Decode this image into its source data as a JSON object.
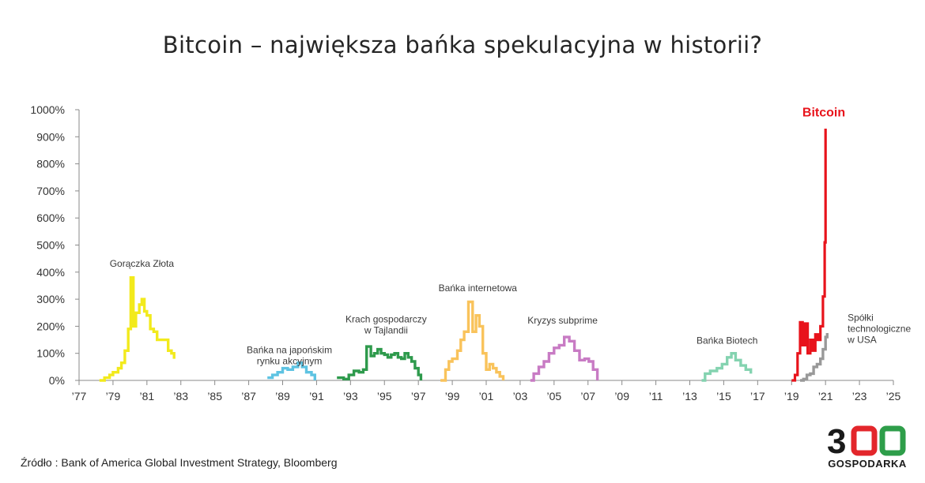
{
  "title": "Bitcoin – największa bańka spekulacyjna w historii?",
  "source": "Źródło : Bank of America Global Investment Strategy, Bloomberg",
  "logo": {
    "text": "300",
    "subtext": "GOSPODARKA",
    "colors": {
      "dark": "#1a1a1a",
      "red": "#e3262b",
      "green": "#2e9e4a"
    }
  },
  "chart_data": {
    "type": "line",
    "title": "Bitcoin – największa bańka spekulacyjna w historii?",
    "xlabel": "",
    "ylabel": "",
    "xlim": [
      1977,
      2025
    ],
    "ylim": [
      0,
      1000
    ],
    "grid": false,
    "x_ticks": [
      {
        "value": 1977,
        "label": "’77"
      },
      {
        "value": 1979,
        "label": "’79"
      },
      {
        "value": 1981,
        "label": "’81"
      },
      {
        "value": 1983,
        "label": "’83"
      },
      {
        "value": 1985,
        "label": "’85"
      },
      {
        "value": 1987,
        "label": "’87"
      },
      {
        "value": 1989,
        "label": "’89"
      },
      {
        "value": 1991,
        "label": "’91"
      },
      {
        "value": 1993,
        "label": "’93"
      },
      {
        "value": 1995,
        "label": "’95"
      },
      {
        "value": 1997,
        "label": "’97"
      },
      {
        "value": 1999,
        "label": "’99"
      },
      {
        "value": 2001,
        "label": "’01"
      },
      {
        "value": 2003,
        "label": "’03"
      },
      {
        "value": 2005,
        "label": "’05"
      },
      {
        "value": 2007,
        "label": "’07"
      },
      {
        "value": 2009,
        "label": "’09"
      },
      {
        "value": 2011,
        "label": "’11"
      },
      {
        "value": 2013,
        "label": "’13"
      },
      {
        "value": 2015,
        "label": "’15"
      },
      {
        "value": 2017,
        "label": "’17"
      },
      {
        "value": 2019,
        "label": "’19"
      },
      {
        "value": 2021,
        "label": "’21"
      },
      {
        "value": 2023,
        "label": "’23"
      },
      {
        "value": 2025,
        "label": "’25"
      }
    ],
    "y_ticks": [
      {
        "value": 0,
        "label": "0%"
      },
      {
        "value": 100,
        "label": "100%"
      },
      {
        "value": 200,
        "label": "200%"
      },
      {
        "value": 300,
        "label": "300%"
      },
      {
        "value": 400,
        "label": "400%"
      },
      {
        "value": 500,
        "label": "500%"
      },
      {
        "value": 600,
        "label": "600%"
      },
      {
        "value": 700,
        "label": "700%"
      },
      {
        "value": 800,
        "label": "800%"
      },
      {
        "value": 900,
        "label": "900%"
      },
      {
        "value": 1000,
        "label": "1000%"
      }
    ],
    "series": [
      {
        "name": "Gorączka Złota",
        "color": "#f2ea1c",
        "label_pos": [
          1980.7,
          420
        ],
        "points": [
          [
            1978.2,
            0
          ],
          [
            1978.5,
            10
          ],
          [
            1978.8,
            20
          ],
          [
            1979.0,
            30
          ],
          [
            1979.3,
            45
          ],
          [
            1979.5,
            65
          ],
          [
            1979.7,
            110
          ],
          [
            1979.9,
            190
          ],
          [
            1980.05,
            380
          ],
          [
            1980.2,
            200
          ],
          [
            1980.35,
            250
          ],
          [
            1980.55,
            280
          ],
          [
            1980.7,
            300
          ],
          [
            1980.85,
            255
          ],
          [
            1981.0,
            240
          ],
          [
            1981.2,
            190
          ],
          [
            1981.4,
            180
          ],
          [
            1981.6,
            150
          ],
          [
            1981.8,
            150
          ],
          [
            1982.05,
            150
          ],
          [
            1982.25,
            110
          ],
          [
            1982.45,
            100
          ],
          [
            1982.6,
            80
          ]
        ]
      },
      {
        "name": "Bańka na japońskim rynku akcyjnym",
        "label_lines": [
          "Bańka na japońskim",
          "rynku akcyjnym"
        ],
        "color": "#5ec3e2",
        "label_pos": [
          1989.4,
          100
        ],
        "points": [
          [
            1988.1,
            10
          ],
          [
            1988.4,
            20
          ],
          [
            1988.7,
            30
          ],
          [
            1989.0,
            45
          ],
          [
            1989.3,
            40
          ],
          [
            1989.6,
            50
          ],
          [
            1989.9,
            65
          ],
          [
            1990.15,
            50
          ],
          [
            1990.4,
            30
          ],
          [
            1990.7,
            20
          ],
          [
            1990.9,
            0
          ]
        ]
      },
      {
        "name": "Krach gospodarczy w Tajlandii",
        "label_lines": [
          "Krach gospodarczy",
          "w Tajlandii"
        ],
        "color": "#2e9a4c",
        "label_pos": [
          1995.1,
          215
        ],
        "points": [
          [
            1992.2,
            10
          ],
          [
            1992.6,
            5
          ],
          [
            1992.9,
            20
          ],
          [
            1993.2,
            35
          ],
          [
            1993.5,
            30
          ],
          [
            1993.75,
            40
          ],
          [
            1993.95,
            125
          ],
          [
            1994.2,
            90
          ],
          [
            1994.4,
            100
          ],
          [
            1994.6,
            115
          ],
          [
            1994.8,
            100
          ],
          [
            1995.0,
            95
          ],
          [
            1995.2,
            85
          ],
          [
            1995.4,
            95
          ],
          [
            1995.6,
            100
          ],
          [
            1995.8,
            85
          ],
          [
            1996.0,
            80
          ],
          [
            1996.2,
            100
          ],
          [
            1996.4,
            85
          ],
          [
            1996.6,
            70
          ],
          [
            1996.8,
            45
          ],
          [
            1997.0,
            20
          ],
          [
            1997.15,
            0
          ]
        ]
      },
      {
        "name": "Bańka internetowa",
        "color": "#f9c35b",
        "label_pos": [
          2000.5,
          330
        ],
        "points": [
          [
            1998.3,
            0
          ],
          [
            1998.6,
            40
          ],
          [
            1998.8,
            70
          ],
          [
            1999.0,
            80
          ],
          [
            1999.3,
            110
          ],
          [
            1999.5,
            150
          ],
          [
            1999.7,
            180
          ],
          [
            1999.95,
            290
          ],
          [
            2000.2,
            180
          ],
          [
            2000.4,
            240
          ],
          [
            2000.6,
            200
          ],
          [
            2000.8,
            100
          ],
          [
            2001.0,
            40
          ],
          [
            2001.2,
            60
          ],
          [
            2001.4,
            45
          ],
          [
            2001.6,
            30
          ],
          [
            2001.8,
            15
          ],
          [
            2002.0,
            0
          ]
        ]
      },
      {
        "name": "Kryzys subprime",
        "color": "#c87bc4",
        "label_pos": [
          2005.5,
          210
        ],
        "points": [
          [
            2003.6,
            0
          ],
          [
            2003.8,
            25
          ],
          [
            2004.1,
            50
          ],
          [
            2004.4,
            70
          ],
          [
            2004.7,
            100
          ],
          [
            2005.0,
            120
          ],
          [
            2005.3,
            130
          ],
          [
            2005.6,
            160
          ],
          [
            2005.9,
            145
          ],
          [
            2006.2,
            110
          ],
          [
            2006.5,
            75
          ],
          [
            2006.8,
            80
          ],
          [
            2007.05,
            70
          ],
          [
            2007.3,
            40
          ],
          [
            2007.55,
            0
          ]
        ]
      },
      {
        "name": "Bańka Biotech",
        "color": "#84d3b0",
        "label_pos": [
          2015.2,
          135
        ],
        "points": [
          [
            2013.7,
            0
          ],
          [
            2013.9,
            25
          ],
          [
            2014.2,
            35
          ],
          [
            2014.6,
            45
          ],
          [
            2014.9,
            60
          ],
          [
            2015.2,
            85
          ],
          [
            2015.45,
            100
          ],
          [
            2015.7,
            75
          ],
          [
            2016.0,
            55
          ],
          [
            2016.3,
            40
          ],
          [
            2016.6,
            25
          ]
        ]
      },
      {
        "name": "Spółki technologiczne w USA",
        "label_lines": [
          "Spółki",
          "technologiczne",
          "w USA"
        ],
        "color": "#999999",
        "label_pos": [
          2022.3,
          220
        ],
        "points": [
          [
            2019.5,
            0
          ],
          [
            2019.7,
            5
          ],
          [
            2019.9,
            20
          ],
          [
            2020.1,
            25
          ],
          [
            2020.3,
            50
          ],
          [
            2020.5,
            60
          ],
          [
            2020.7,
            80
          ],
          [
            2020.85,
            115
          ],
          [
            2021.0,
            160
          ],
          [
            2021.1,
            175
          ]
        ]
      },
      {
        "name": "Bitcoin",
        "color": "#e8131b",
        "bold_label": true,
        "label_pos": [
          2020.9,
          975
        ],
        "points": [
          [
            2019.0,
            0
          ],
          [
            2019.2,
            20
          ],
          [
            2019.35,
            100
          ],
          [
            2019.5,
            215
          ],
          [
            2019.65,
            130
          ],
          [
            2019.8,
            210
          ],
          [
            2019.95,
            100
          ],
          [
            2020.1,
            150
          ],
          [
            2020.25,
            110
          ],
          [
            2020.4,
            170
          ],
          [
            2020.55,
            150
          ],
          [
            2020.7,
            200
          ],
          [
            2020.85,
            310
          ],
          [
            2020.95,
            510
          ],
          [
            2021.0,
            930
          ]
        ]
      }
    ]
  }
}
